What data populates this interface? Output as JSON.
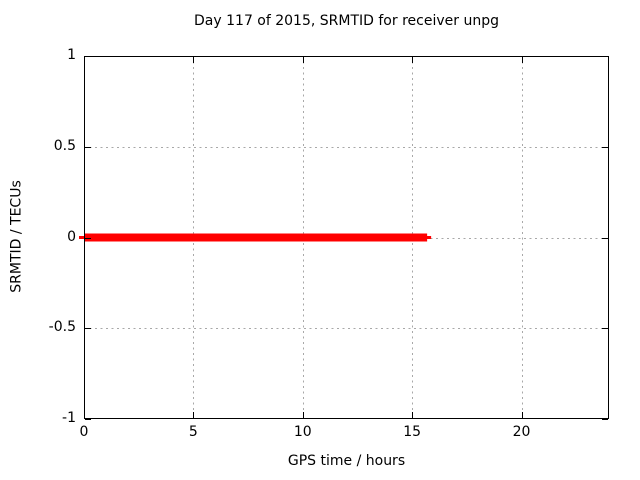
{
  "chart_data": {
    "type": "line",
    "title": "Day 117 of 2015, SRMTID for receiver unpg",
    "xlabel": "GPS time / hours",
    "ylabel": "SRMTID / TECUs",
    "xlim": [
      0,
      24
    ],
    "ylim": [
      -1,
      1
    ],
    "xticks": {
      "values": [
        0,
        5,
        10,
        15,
        20
      ],
      "labels": [
        "0",
        "5",
        "10",
        "15",
        "20"
      ]
    },
    "yticks": {
      "values": [
        1,
        0.5,
        0,
        -0.5,
        -1
      ],
      "labels": [
        "1",
        "0.5",
        "0",
        "-0.5",
        "-1"
      ]
    },
    "grid": true,
    "grid_style": "dotted",
    "legend": "none",
    "series": [
      {
        "name": "SRMTID",
        "x": [
          0,
          15.8
        ],
        "y": [
          0,
          0
        ],
        "linewidth": 8
      }
    ]
  },
  "colors": {
    "background": "#ffffff",
    "axis": "#000000",
    "grid": "#a8a8a8",
    "series": "#ff0000",
    "text": "#000000"
  }
}
